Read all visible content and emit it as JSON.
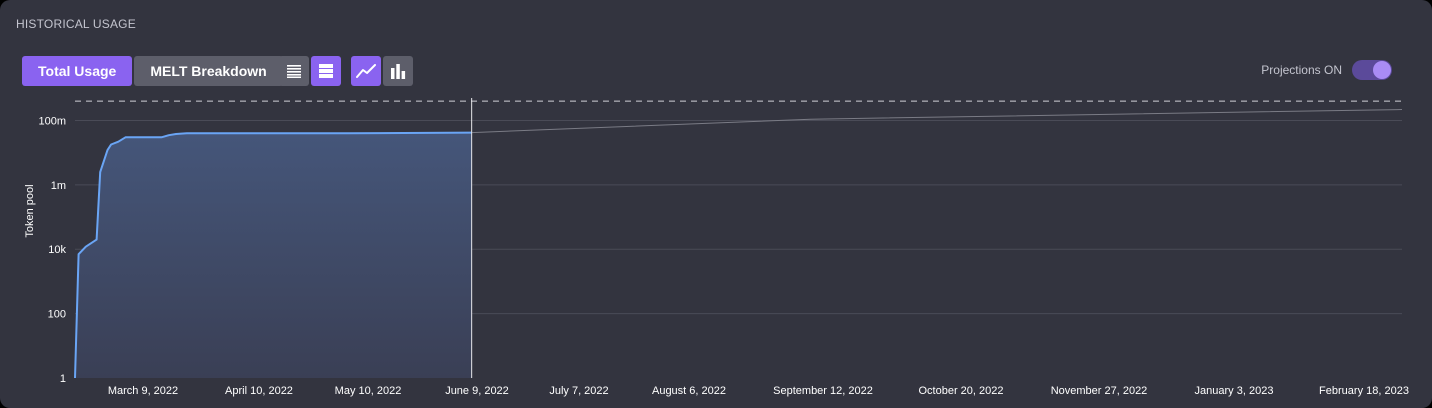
{
  "panel": {
    "title": "HISTORICAL USAGE"
  },
  "tabs": [
    {
      "label": "Total Usage",
      "active": true
    },
    {
      "label": "MELT Breakdown",
      "active": false
    }
  ],
  "view_toggles": [
    {
      "icon": "list-view-icon",
      "active": false
    },
    {
      "icon": "stacked-view-icon",
      "active": true
    }
  ],
  "chart_type_toggles": [
    {
      "icon": "line-chart-icon",
      "active": true
    },
    {
      "icon": "bar-chart-icon",
      "active": false
    }
  ],
  "projections": {
    "label": "Projections ON",
    "enabled": true
  },
  "colors": {
    "accent": "#8a63f0",
    "line": "#6aa5f5",
    "fill": "#3e4a66",
    "projection": "#7a7b85"
  },
  "chart_data": {
    "type": "area",
    "ylabel": "Token pool",
    "yscale": "log",
    "ylim": [
      1,
      500000000
    ],
    "y_ticks": [
      {
        "label": "1",
        "value": 1
      },
      {
        "label": "100",
        "value": 100
      },
      {
        "label": "10k",
        "value": 10000
      },
      {
        "label": "1m",
        "value": 1000000
      },
      {
        "label": "100m",
        "value": 100000000
      }
    ],
    "x_ticks": [
      "March 9, 2022",
      "April 10, 2022",
      "May 10, 2022",
      "June 9, 2022",
      "July 7, 2022",
      "August 6, 2022",
      "September 12, 2022",
      "October 20, 2022",
      "November 27, 2022",
      "January 3, 2023",
      "February 18, 2023"
    ],
    "xlim": [
      "2022-02-18",
      "2023-02-21"
    ],
    "current_date": "2022-06-08",
    "grid": true,
    "series": [
      {
        "kind": "actual",
        "points": [
          {
            "x": "2022-02-18",
            "y": 1
          },
          {
            "x": "2022-02-19",
            "y": 7000
          },
          {
            "x": "2022-02-21",
            "y": 12000
          },
          {
            "x": "2022-02-24",
            "y": 20000
          },
          {
            "x": "2022-02-25",
            "y": 2500000
          },
          {
            "x": "2022-02-27",
            "y": 12000000
          },
          {
            "x": "2022-02-28",
            "y": 18000000
          },
          {
            "x": "2022-03-02",
            "y": 22000000
          },
          {
            "x": "2022-03-04",
            "y": 30000000
          },
          {
            "x": "2022-03-14",
            "y": 30000000
          },
          {
            "x": "2022-03-16",
            "y": 35000000
          },
          {
            "x": "2022-03-18",
            "y": 38000000
          },
          {
            "x": "2022-03-21",
            "y": 40000000
          },
          {
            "x": "2022-05-05",
            "y": 40000000
          },
          {
            "x": "2022-06-08",
            "y": 42000000
          }
        ]
      },
      {
        "kind": "projection",
        "points": [
          {
            "x": "2022-06-08",
            "y": 42000000
          },
          {
            "x": "2022-09-10",
            "y": 110000000
          },
          {
            "x": "2023-02-21",
            "y": 220000000
          }
        ]
      }
    ],
    "limit_line": {
      "y": 400000000,
      "style": "dashed"
    }
  }
}
